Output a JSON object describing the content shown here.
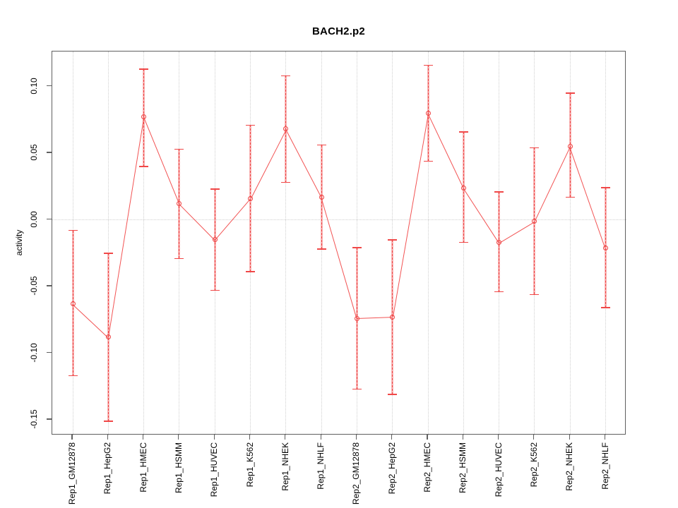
{
  "title": "BACH2.p2",
  "y_axis": {
    "label": "activity",
    "tick_labels": [
      "0.10",
      "0.05",
      "0.00",
      "-0.05",
      "-0.10",
      "-0.15"
    ]
  },
  "chart_data": {
    "type": "line",
    "title": "BACH2.p2",
    "xlabel": "",
    "ylabel": "activity",
    "ylim": [
      -0.162,
      0.126
    ],
    "yticks": [
      0.1,
      0.05,
      0.0,
      -0.05,
      -0.1,
      -0.15
    ],
    "grid": {
      "vertical": "dotted line at each category",
      "horizontal": "dotted line at y=0"
    },
    "legend_position": "none",
    "marker": "open-circle",
    "categories": [
      "Rep1_GM12878",
      "Rep1_HepG2",
      "Rep1_HMEC",
      "Rep1_HSMM",
      "Rep1_HUVEC",
      "Rep1_K562",
      "Rep1_NHEK",
      "Rep1_NHLF",
      "Rep2_GM12878",
      "Rep2_HepG2",
      "Rep2_HMEC",
      "Rep2_HSMM",
      "Rep2_HUVEC",
      "Rep2_K562",
      "Rep2_NHEK",
      "Rep2_NHLF"
    ],
    "series": [
      {
        "name": "activity",
        "values": [
          -0.063,
          -0.088,
          0.077,
          0.012,
          -0.015,
          0.016,
          0.068,
          0.017,
          -0.074,
          -0.073,
          0.08,
          0.024,
          -0.017,
          -0.001,
          0.055,
          -0.021
        ],
        "error_low": [
          -0.117,
          -0.151,
          0.04,
          -0.029,
          -0.053,
          -0.039,
          0.028,
          -0.022,
          -0.127,
          -0.131,
          0.044,
          -0.017,
          -0.054,
          -0.056,
          0.017,
          -0.066
        ],
        "error_high": [
          -0.008,
          -0.025,
          0.113,
          0.053,
          0.023,
          0.071,
          0.108,
          0.056,
          -0.021,
          -0.015,
          0.116,
          0.066,
          0.021,
          0.054,
          0.095,
          0.024
        ]
      }
    ],
    "colors": {
      "line": "#f25353",
      "marker": "#ee3f3f",
      "error_band": "#f8b6b6",
      "error_cap": "#f04848",
      "grid": "#cfcfcf",
      "axis": "#606060",
      "text": "#000000"
    }
  }
}
